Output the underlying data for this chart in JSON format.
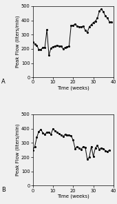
{
  "chart_A": {
    "x": [
      0,
      1,
      2,
      3,
      4,
      5,
      6,
      7,
      8,
      9,
      10,
      11,
      12,
      13,
      14,
      15,
      16,
      17,
      18,
      19,
      20,
      21,
      22,
      23,
      24,
      25,
      26,
      27,
      28,
      29,
      30,
      31,
      32,
      33,
      34,
      35,
      36,
      37,
      38,
      39
    ],
    "y": [
      250,
      235,
      225,
      195,
      195,
      210,
      210,
      335,
      155,
      205,
      215,
      220,
      225,
      220,
      220,
      200,
      210,
      215,
      220,
      365,
      365,
      375,
      360,
      355,
      355,
      360,
      330,
      315,
      355,
      370,
      385,
      395,
      415,
      465,
      480,
      460,
      430,
      415,
      390,
      390
    ],
    "label": "A",
    "ylabel": "Peak Flow (liters/min)",
    "xlabel": "Time (weeks)",
    "ylim": [
      0,
      500
    ],
    "xlim": [
      0,
      40
    ],
    "yticks": [
      0,
      100,
      200,
      300,
      400,
      500
    ],
    "xticks": [
      0,
      10,
      20,
      30,
      40
    ]
  },
  "chart_B": {
    "x": [
      0,
      1,
      2,
      3,
      4,
      5,
      6,
      7,
      8,
      9,
      10,
      11,
      12,
      13,
      14,
      15,
      16,
      17,
      18,
      19,
      20,
      21,
      22,
      23,
      24,
      25,
      26,
      27,
      28,
      29,
      30,
      31,
      32,
      33,
      34,
      35,
      36,
      37,
      38
    ],
    "y": [
      250,
      275,
      340,
      380,
      395,
      370,
      360,
      375,
      375,
      360,
      400,
      385,
      375,
      365,
      355,
      345,
      360,
      355,
      355,
      350,
      320,
      260,
      275,
      265,
      255,
      275,
      270,
      185,
      200,
      275,
      205,
      265,
      280,
      255,
      265,
      260,
      245,
      240,
      250
    ],
    "label": "B",
    "ylabel": "Peak Flow (liters/min)",
    "xlabel": "Time (weeks)",
    "ylim": [
      0,
      500
    ],
    "xlim": [
      0,
      40
    ],
    "yticks": [
      0,
      100,
      200,
      300,
      400,
      500
    ],
    "xticks": [
      0,
      10,
      20,
      30,
      40
    ]
  },
  "line_color": "#000000",
  "marker": "o",
  "markersize": 1.2,
  "linewidth": 0.7,
  "bg_color": "#f0f0f0",
  "label_fontsize": 5,
  "tick_fontsize": 4.8
}
